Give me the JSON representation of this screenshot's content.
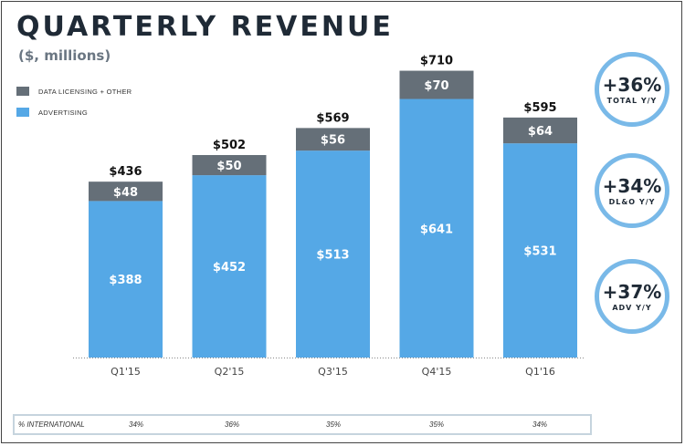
{
  "title": "QUARTERLY REVENUE",
  "subtitle": "($, millions)",
  "colors": {
    "dlo": "#656f78",
    "adv": "#55a8e6",
    "ring": "#79b9e8"
  },
  "legend": [
    {
      "label": "DATA LICENSING + OTHER",
      "color": "#656f78"
    },
    {
      "label": "ADVERTISING",
      "color": "#55a8e6"
    }
  ],
  "chart_data": {
    "type": "bar",
    "stacked": true,
    "title": "QUARTERLY REVENUE",
    "subtitle": "($, millions)",
    "categories": [
      "Q1'15",
      "Q2'15",
      "Q3'15",
      "Q4'15",
      "Q1'16"
    ],
    "series": [
      {
        "name": "ADVERTISING",
        "values": [
          388,
          452,
          513,
          641,
          531
        ],
        "labels": [
          "$388",
          "$452",
          "$513",
          "$641",
          "$531"
        ]
      },
      {
        "name": "DATA LICENSING + OTHER",
        "values": [
          48,
          50,
          56,
          70,
          64
        ],
        "labels": [
          "$48",
          "$50",
          "$56",
          "$70",
          "$64"
        ]
      }
    ],
    "totals": [
      436,
      502,
      569,
      710,
      595
    ],
    "total_labels": [
      "$436",
      "$502",
      "$569",
      "$710",
      "$595"
    ],
    "ylim": [
      0,
      710
    ],
    "legend_position": "top-left"
  },
  "kpis": [
    {
      "value": "+36%",
      "label": "TOTAL Y/Y"
    },
    {
      "value": "+34%",
      "label": "DL&O Y/Y"
    },
    {
      "value": "+37%",
      "label": "ADV Y/Y"
    }
  ],
  "international": {
    "label": "% INTERNATIONAL",
    "values": [
      "34%",
      "36%",
      "35%",
      "35%",
      "34%"
    ]
  }
}
